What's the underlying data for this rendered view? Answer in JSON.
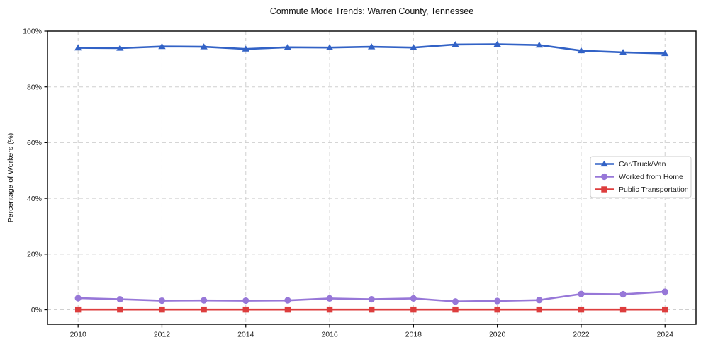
{
  "figure": {
    "background": "#ffffff"
  },
  "chart_data": {
    "type": "line",
    "title": "Commute Mode Trends: Warren County, Tennessee",
    "xlabel": "",
    "ylabel": "Percentage of Workers (%)",
    "x": [
      2010,
      2011,
      2012,
      2013,
      2014,
      2015,
      2016,
      2017,
      2018,
      2019,
      2020,
      2021,
      2022,
      2023,
      2024
    ],
    "series": [
      {
        "name": "Car/Truck/Van",
        "color": "#3262c6",
        "marker": "triangle",
        "values": [
          94.0,
          93.9,
          94.5,
          94.4,
          93.6,
          94.2,
          94.1,
          94.4,
          94.1,
          95.2,
          95.3,
          95.0,
          93.0,
          92.4,
          92.0
        ]
      },
      {
        "name": "Worked from Home",
        "color": "#9777d8",
        "marker": "circle",
        "values": [
          4.2,
          3.8,
          3.3,
          3.4,
          3.3,
          3.4,
          4.1,
          3.8,
          4.1,
          3.0,
          3.2,
          3.5,
          5.7,
          5.6,
          6.5
        ]
      },
      {
        "name": "Public Transportation",
        "color": "#dd3d3d",
        "marker": "square",
        "values": [
          0.1,
          0.1,
          0.1,
          0.1,
          0.1,
          0.1,
          0.1,
          0.1,
          0.1,
          0.1,
          0.1,
          0.1,
          0.1,
          0.1,
          0.1
        ]
      }
    ],
    "xtick_values": [
      2010,
      2012,
      2014,
      2016,
      2018,
      2020,
      2022,
      2024
    ],
    "xtick_labels": [
      "2010",
      "2012",
      "2014",
      "2016",
      "2018",
      "2020",
      "2022",
      "2024"
    ],
    "ytick_values": [
      0,
      20,
      40,
      60,
      80,
      100
    ],
    "ytick_labels": [
      "0%",
      "20%",
      "40%",
      "60%",
      "80%",
      "100%"
    ],
    "xlim": [
      2009.27,
      2024.74
    ],
    "ylim": [
      -5.2,
      100
    ],
    "grid": true,
    "grid_style": "dashed",
    "legend_position": "right-center",
    "colors": {
      "grid": "#cfcfcf",
      "spine": "#000000",
      "tick_label": "#1a1a1a",
      "legend_border": "#cccccc",
      "legend_background": "#ffffff"
    }
  }
}
